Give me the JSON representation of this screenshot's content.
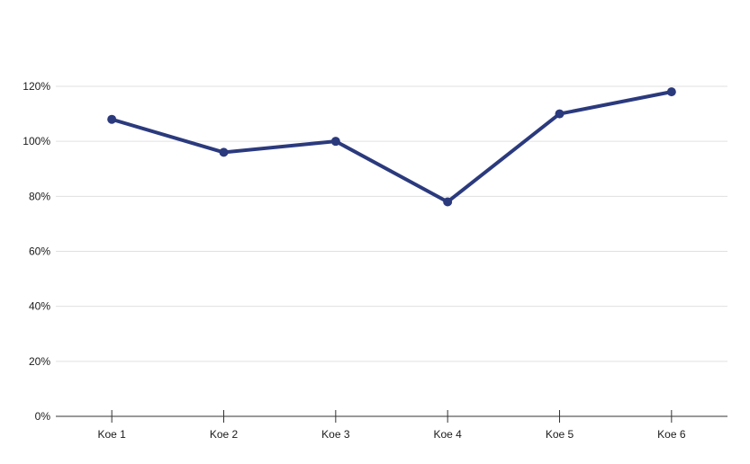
{
  "chart": {
    "background": "#ffffff",
    "series_color": "#2b3a7d",
    "axis_color": "#333333",
    "gridline_color": "#e0e0e0",
    "label_color": "#1a1a1a"
  },
  "chart_data": {
    "type": "line",
    "title": "",
    "xlabel": "",
    "ylabel": "",
    "categories": [
      "Koe 1",
      "Koe 2",
      "Koe 3",
      "Koe 4",
      "Koe 5",
      "Koe 6"
    ],
    "series": [
      {
        "name": "",
        "values": [
          108,
          96,
          100,
          78,
          110,
          118
        ]
      }
    ],
    "ylim": [
      0,
      120
    ],
    "ytick_step": 20,
    "ytick_format": "percent",
    "ytick_labels": [
      "0%",
      "20%",
      "40%",
      "60%",
      "80%",
      "100%",
      "120%"
    ],
    "grid": true,
    "legend": false,
    "marker": "circle"
  }
}
